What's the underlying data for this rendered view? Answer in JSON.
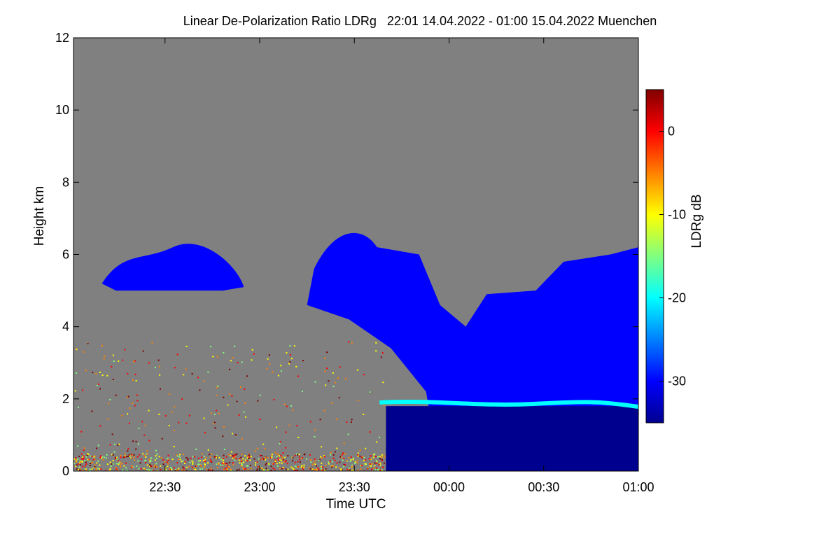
{
  "title": "Linear De-Polarization Ratio LDRg   22:01 14.04.2022 - 01:00 15.04.2022 Muenchen",
  "chart_data": {
    "type": "heatmap",
    "xlabel": "Time UTC",
    "ylabel": "Height km",
    "x_start": "22:01",
    "x_end": "01:00",
    "x_ticks": [
      "22:30",
      "23:00",
      "23:30",
      "00:00",
      "00:30",
      "01:00"
    ],
    "ylim": [
      0,
      12
    ],
    "y_ticks": [
      0,
      2,
      4,
      6,
      8,
      10,
      12
    ],
    "colorbar": {
      "label": "LDRg dB",
      "range": [
        -35,
        5
      ],
      "ticks": [
        0,
        -10,
        -20,
        -30
      ],
      "colormap": [
        "#00008f",
        "#0000ff",
        "#0080ff",
        "#00ffff",
        "#80ff80",
        "#ffff00",
        "#ff8000",
        "#ff0000",
        "#800000"
      ]
    },
    "no_data_color": "#808080",
    "features": [
      {
        "name": "cloud layer",
        "time_range": [
          "23:15",
          "01:00"
        ],
        "height_top_km": [
          6.8,
          4.0,
          6.2
        ],
        "ldr_db": -29
      },
      {
        "name": "melting layer",
        "time_range": [
          "23:38",
          "01:00"
        ],
        "height_km": 1.9,
        "ldr_db": -22
      },
      {
        "name": "rain below melting layer",
        "time_range": [
          "23:40",
          "01:00"
        ],
        "height_range_km": [
          0,
          1.8
        ],
        "ldr_db": -33
      },
      {
        "name": "elevated cloud patch",
        "time_range": [
          "22:10",
          "22:55"
        ],
        "height_range_km": [
          5.0,
          6.2
        ],
        "ldr_db": -28
      },
      {
        "name": "insects and clutter",
        "time_range": [
          "22:01",
          "23:40"
        ],
        "height_range_km": [
          0,
          3.6
        ],
        "ldr_db": -5
      }
    ]
  }
}
